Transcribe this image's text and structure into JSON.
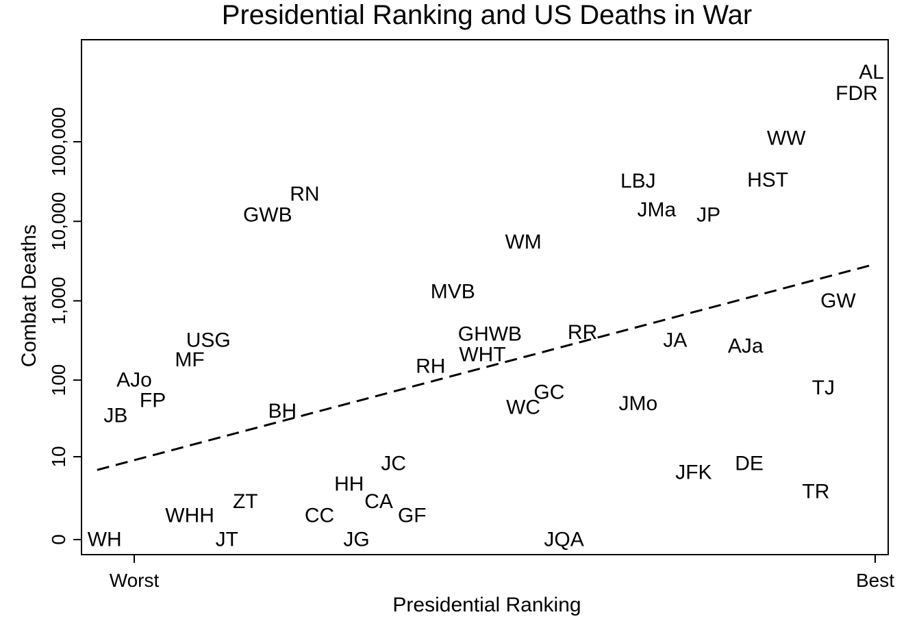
{
  "chart_data": {
    "type": "scatter",
    "title": "Presidential Ranking and US Deaths in War",
    "xlabel": "Presidential Ranking",
    "ylabel": "Combat Deaths",
    "x_ticks": [
      {
        "label": "Worst",
        "value": 0
      },
      {
        "label": "Best",
        "value": 1
      }
    ],
    "y_scale": "log",
    "y_ticks": [
      {
        "label": "0",
        "value": 0
      },
      {
        "label": "10",
        "value": 10
      },
      {
        "label": "100",
        "value": 100
      },
      {
        "label": "1,000",
        "value": 1000
      },
      {
        "label": "10,000",
        "value": 10000
      },
      {
        "label": "100,000",
        "value": 100000
      }
    ],
    "points": [
      {
        "label": "WH",
        "x": -0.04,
        "y": 0
      },
      {
        "label": "WHH",
        "x": 0.075,
        "y": 1
      },
      {
        "label": "JT",
        "x": 0.125,
        "y": 0
      },
      {
        "label": "ZT",
        "x": 0.15,
        "y": 2
      },
      {
        "label": "CC",
        "x": 0.25,
        "y": 1
      },
      {
        "label": "JG",
        "x": 0.3,
        "y": 0
      },
      {
        "label": "HH",
        "x": 0.29,
        "y": 4
      },
      {
        "label": "CA",
        "x": 0.33,
        "y": 2
      },
      {
        "label": "GF",
        "x": 0.375,
        "y": 1
      },
      {
        "label": "JC",
        "x": 0.35,
        "y": 8
      },
      {
        "label": "JQA",
        "x": 0.58,
        "y": 0
      },
      {
        "label": "JFK",
        "x": 0.755,
        "y": 6
      },
      {
        "label": "DE",
        "x": 0.83,
        "y": 8
      },
      {
        "label": "TR",
        "x": 0.92,
        "y": 3
      },
      {
        "label": "JB",
        "x": -0.025,
        "y": 35
      },
      {
        "label": "FP",
        "x": 0.025,
        "y": 55
      },
      {
        "label": "AJo",
        "x": 0.0,
        "y": 100
      },
      {
        "label": "MF",
        "x": 0.075,
        "y": 180
      },
      {
        "label": "USG",
        "x": 0.1,
        "y": 320
      },
      {
        "label": "BH",
        "x": 0.2,
        "y": 40
      },
      {
        "label": "RH",
        "x": 0.4,
        "y": 150
      },
      {
        "label": "WHT",
        "x": 0.47,
        "y": 210
      },
      {
        "label": "GHWB",
        "x": 0.48,
        "y": 380
      },
      {
        "label": "MVB",
        "x": 0.43,
        "y": 1300
      },
      {
        "label": "WC",
        "x": 0.525,
        "y": 45
      },
      {
        "label": "GC",
        "x": 0.56,
        "y": 70
      },
      {
        "label": "RR",
        "x": 0.605,
        "y": 400
      },
      {
        "label": "JMo",
        "x": 0.68,
        "y": 50
      },
      {
        "label": "JA",
        "x": 0.73,
        "y": 320
      },
      {
        "label": "AJa",
        "x": 0.825,
        "y": 270
      },
      {
        "label": "TJ",
        "x": 0.93,
        "y": 80
      },
      {
        "label": "GW",
        "x": 0.95,
        "y": 1000
      },
      {
        "label": "GWB",
        "x": 0.18,
        "y": 12000
      },
      {
        "label": "RN",
        "x": 0.23,
        "y": 22000
      },
      {
        "label": "WM",
        "x": 0.525,
        "y": 5500
      },
      {
        "label": "LBJ",
        "x": 0.68,
        "y": 32000
      },
      {
        "label": "JMa",
        "x": 0.705,
        "y": 14000
      },
      {
        "label": "JP",
        "x": 0.775,
        "y": 12000
      },
      {
        "label": "HST",
        "x": 0.855,
        "y": 33000
      },
      {
        "label": "WW",
        "x": 0.88,
        "y": 110000
      },
      {
        "label": "FDR",
        "x": 0.975,
        "y": 405000
      },
      {
        "label": "AL",
        "x": 0.995,
        "y": 750000
      }
    ],
    "fit_line": {
      "style": "dashed",
      "x": [
        -0.05,
        1.0
      ],
      "y": [
        6.5,
        2900
      ]
    },
    "legend": "none",
    "grid": false
  }
}
